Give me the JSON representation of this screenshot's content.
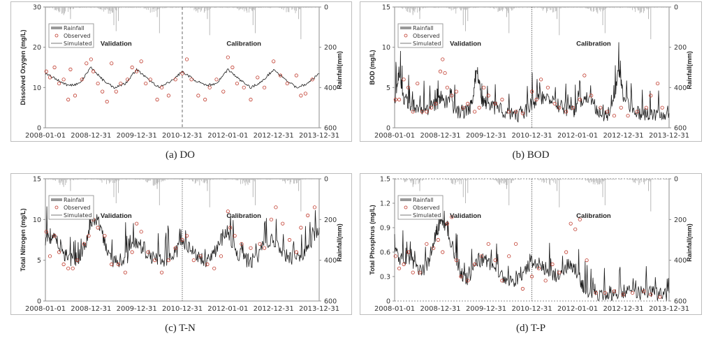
{
  "figure": {
    "captions": [
      "(a)  DO",
      "(b)  BOD",
      "(c)  T-N",
      "(d)  T-P"
    ]
  },
  "colors": {
    "simulated": "#1a1a1a",
    "observed": "#c0392b",
    "rainfall": "#b0b0b0",
    "axis": "#8c8c8c"
  },
  "chart_data": [
    {
      "type": "line",
      "id": "do",
      "caption": "(a)  DO",
      "ylabel": "Dissolved Oxygen (mg/L)",
      "y2label": "Rainfall(mm)",
      "ylim": [
        0,
        30
      ],
      "yticks": [
        "0",
        "10",
        "20",
        "30"
      ],
      "y2lim": [
        600,
        0
      ],
      "y2ticks": [
        "0",
        "200",
        "400",
        "600"
      ],
      "xticks": [
        "2008-01-01",
        "2008-12-31",
        "2009-12-31",
        "2010-12-31",
        "2012-01-01",
        "2012-12-31",
        "2013-12-31"
      ],
      "xrange_years": [
        2008.0,
        2014.0
      ],
      "divider_year": 2011.0,
      "divider_style": "dashed",
      "period_labels": [
        "Validation",
        "Calibration"
      ],
      "legend": [
        "Rainfall",
        "Observed",
        "Simulated"
      ],
      "legend_position": "top-left",
      "simulated": {
        "x": [
          2008.0,
          2008.25,
          2008.5,
          2008.75,
          2009.0,
          2009.25,
          2009.5,
          2009.75,
          2010.0,
          2010.25,
          2010.5,
          2010.75,
          2011.0,
          2011.25,
          2011.5,
          2011.75,
          2012.0,
          2012.25,
          2012.5,
          2012.75,
          2013.0,
          2013.25,
          2013.5,
          2013.75,
          2014.0
        ],
        "y": [
          13.5,
          12,
          10.5,
          11,
          15,
          12,
          10,
          11,
          14.5,
          12,
          10,
          11.5,
          14,
          12,
          10.5,
          11,
          14.5,
          12,
          10,
          11.5,
          14.5,
          12,
          10,
          11,
          13.5
        ]
      },
      "observed": {
        "x": [
          2008.02,
          2008.1,
          2008.2,
          2008.3,
          2008.4,
          2008.5,
          2008.55,
          2008.65,
          2008.8,
          2008.9,
          2009.0,
          2009.05,
          2009.15,
          2009.25,
          2009.35,
          2009.45,
          2009.55,
          2009.65,
          2009.8,
          2009.9,
          2010.0,
          2010.1,
          2010.2,
          2010.3,
          2010.45,
          2010.55,
          2010.7,
          2010.85,
          2011.0,
          2011.1,
          2011.2,
          2011.35,
          2011.5,
          2011.6,
          2011.75,
          2011.9,
          2012.0,
          2012.1,
          2012.2,
          2012.35,
          2012.5,
          2012.65,
          2012.8,
          2013.0,
          2013.15,
          2013.3,
          2013.5,
          2013.6,
          2013.7,
          2013.85
        ],
        "y": [
          14,
          12.5,
          15,
          11,
          12,
          7,
          14.5,
          8,
          12,
          16,
          17,
          14,
          11,
          9,
          6.5,
          16,
          9,
          11,
          12,
          15,
          14,
          16.5,
          11,
          12,
          7,
          10,
          8,
          12,
          13.5,
          17,
          12,
          8,
          7,
          10,
          12,
          9,
          17.5,
          15,
          11,
          10,
          7,
          12.5,
          10,
          16.5,
          13,
          11,
          13,
          8,
          8.5,
          12
        ]
      },
      "rainfall": {
        "x": [
          2008.4,
          2008.55,
          2009.5,
          2009.55,
          2009.6,
          2010.45,
          2010.5,
          2011.55,
          2011.6,
          2012.55,
          2012.6,
          2013.55,
          2013.6
        ],
        "y": [
          40,
          60,
          90,
          120,
          70,
          50,
          130,
          60,
          140,
          90,
          130,
          60,
          160
        ]
      }
    },
    {
      "type": "line",
      "id": "bod",
      "caption": "(b)  BOD",
      "ylabel": "BOD (mg/L)",
      "y2label": "Rainfall(mm)",
      "ylim": [
        0,
        15
      ],
      "yticks": [
        "0",
        "5",
        "10",
        "15"
      ],
      "y2lim": [
        600,
        0
      ],
      "y2ticks": [
        "0",
        "200",
        "400",
        "600"
      ],
      "xticks": [
        "2008-01-01",
        "2008-12-31",
        "2009-12-31",
        "2010-12-31",
        "2012-01-01",
        "2012-12-31",
        "2013-12-31"
      ],
      "xrange_years": [
        2008.0,
        2014.0
      ],
      "divider_year": 2011.0,
      "divider_style": "dotted",
      "period_labels": [
        "Validation",
        "Calibration"
      ],
      "legend": [
        "Rainfall",
        "Observed",
        "Simulated"
      ],
      "legend_position": "top-left",
      "simulated": {
        "x": [
          2008.0,
          2008.1,
          2008.2,
          2008.35,
          2008.5,
          2008.7,
          2008.9,
          2009.0,
          2009.2,
          2009.4,
          2009.6,
          2009.7,
          2009.8,
          2009.9,
          2010.0,
          2010.2,
          2010.4,
          2010.6,
          2010.8,
          2011.0,
          2011.1,
          2011.3,
          2011.5,
          2011.7,
          2011.9,
          2012.0,
          2012.2,
          2012.4,
          2012.6,
          2012.75,
          2012.9,
          2013.0,
          2013.2,
          2013.4,
          2013.6,
          2013.8,
          2014.0
        ],
        "y": [
          3,
          7,
          3.5,
          3,
          2.5,
          2,
          3,
          3.5,
          3,
          2,
          2,
          3,
          7.5,
          3.5,
          3,
          2.5,
          2,
          1.5,
          1.7,
          3,
          3.5,
          4,
          3,
          2.5,
          2,
          3,
          4,
          2.5,
          1.5,
          2,
          7,
          4,
          2,
          1.8,
          1.6,
          1.5,
          1.8
        ]
      },
      "observed": {
        "x": [
          2008.02,
          2008.1,
          2008.2,
          2008.3,
          2008.4,
          2008.5,
          2008.6,
          2008.7,
          2008.8,
          2008.9,
          2009.0,
          2009.05,
          2009.1,
          2009.15,
          2009.25,
          2009.35,
          2009.5,
          2009.6,
          2009.75,
          2009.85,
          2009.95,
          2010.05,
          2010.2,
          2010.35,
          2010.5,
          2010.65,
          2010.8,
          2011.0,
          2011.1,
          2011.2,
          2011.35,
          2011.5,
          2011.6,
          2011.75,
          2011.9,
          2012.05,
          2012.15,
          2012.3,
          2012.5,
          2012.65,
          2012.8,
          2012.95,
          2013.1,
          2013.3,
          2013.5,
          2013.6,
          2013.75,
          2013.85
        ],
        "y": [
          3.5,
          3.5,
          6,
          5,
          2,
          5.5,
          2,
          2,
          2.5,
          3,
          7,
          8.5,
          6.8,
          5,
          4,
          4.5,
          2.5,
          3,
          2,
          2.5,
          5,
          4,
          3,
          3.5,
          2,
          2,
          1.8,
          4.5,
          3.5,
          6,
          5,
          3,
          2.5,
          2,
          2.5,
          3.5,
          6.5,
          4,
          2.5,
          2,
          1.5,
          2.5,
          1.5,
          2,
          2.5,
          4,
          5.5,
          2.5
        ]
      },
      "rainfall": {
        "x": [
          2008.4,
          2008.55,
          2009.5,
          2009.55,
          2009.6,
          2010.45,
          2010.5,
          2011.55,
          2011.6,
          2012.55,
          2012.6,
          2013.55,
          2013.6
        ],
        "y": [
          40,
          60,
          90,
          120,
          70,
          50,
          130,
          60,
          140,
          90,
          130,
          60,
          160
        ]
      }
    },
    {
      "type": "line",
      "id": "tn",
      "caption": "(c)  T-N",
      "ylabel": "Total Nitrogen (mg/L)",
      "y2label": "Rainfall(mm)",
      "ylim": [
        0,
        15
      ],
      "yticks": [
        "0",
        "5",
        "10",
        "15"
      ],
      "y2lim": [
        600,
        0
      ],
      "y2ticks": [
        "0",
        "200",
        "400",
        "600"
      ],
      "xticks": [
        "2008-01-01",
        "2008-12-31",
        "2009-12-31",
        "2010-12-31",
        "2012-01-01",
        "2012-12-31",
        "2013-12-31"
      ],
      "xrange_years": [
        2008.0,
        2014.0
      ],
      "divider_year": 2011.0,
      "divider_style": "dotted",
      "period_labels": [
        "Validation",
        "Calibration"
      ],
      "legend": [
        "Rainfall",
        "Observed",
        "Simulated"
      ],
      "legend_position": "top-left",
      "simulated": {
        "x": [
          2008.0,
          2008.15,
          2008.3,
          2008.45,
          2008.6,
          2008.75,
          2008.9,
          2009.0,
          2009.15,
          2009.3,
          2009.45,
          2009.6,
          2009.8,
          2010.0,
          2010.2,
          2010.4,
          2010.6,
          2010.8,
          2011.0,
          2011.2,
          2011.4,
          2011.6,
          2011.8,
          2012.0,
          2012.2,
          2012.4,
          2012.6,
          2012.8,
          2013.0,
          2013.2,
          2013.4,
          2013.6,
          2013.8,
          2014.0
        ],
        "y": [
          7.5,
          8,
          7,
          5.5,
          5,
          5.5,
          7.5,
          10,
          10,
          7,
          5,
          5,
          5.5,
          7.5,
          6,
          5,
          5,
          5.5,
          7,
          6.5,
          5,
          5,
          7,
          8.5,
          6,
          5,
          5,
          7,
          7.5,
          6,
          5,
          5.5,
          7,
          9
        ]
      },
      "observed": {
        "x": [
          2008.02,
          2008.1,
          2008.2,
          2008.3,
          2008.4,
          2008.5,
          2008.6,
          2008.7,
          2008.85,
          2008.95,
          2009.05,
          2009.15,
          2009.3,
          2009.45,
          2009.6,
          2009.75,
          2009.9,
          2010.0,
          2010.1,
          2010.25,
          2010.4,
          2010.55,
          2010.7,
          2010.85,
          2011.0,
          2011.1,
          2011.25,
          2011.4,
          2011.55,
          2011.7,
          2011.85,
          2012.0,
          2012.05,
          2012.15,
          2012.3,
          2012.5,
          2012.7,
          2012.8,
          2012.95,
          2013.05,
          2013.2,
          2013.35,
          2013.5,
          2013.6,
          2013.75,
          2013.9
        ],
        "y": [
          8.5,
          5.5,
          8,
          6,
          4.5,
          4,
          4,
          5,
          7,
          8,
          10,
          9,
          8,
          4.5,
          4.5,
          3.5,
          6,
          9.5,
          8.5,
          6,
          5,
          3.5,
          5,
          6.5,
          7.5,
          8,
          5,
          5.5,
          4.5,
          4,
          5.5,
          11,
          9,
          8,
          7,
          6.5,
          7,
          6.5,
          10,
          11.5,
          9.5,
          7.5,
          6,
          9,
          10.5,
          11.5
        ]
      },
      "rainfall": {
        "x": [
          2008.4,
          2008.55,
          2009.5,
          2009.55,
          2009.6,
          2010.45,
          2010.5,
          2011.55,
          2011.6,
          2012.55,
          2012.6,
          2013.55,
          2013.6
        ],
        "y": [
          40,
          60,
          90,
          120,
          70,
          50,
          130,
          60,
          140,
          90,
          130,
          60,
          160
        ]
      }
    },
    {
      "type": "line",
      "id": "tp",
      "caption": "(d)  T-P",
      "ylabel": "Total Phosphrus (mg/L)",
      "y2label": "Rainfall(mm)",
      "ylim": [
        0,
        1.5
      ],
      "yticks": [
        "0",
        "0.3",
        "0.6",
        "0.9",
        "1.2",
        "1.5"
      ],
      "y2lim": [
        600,
        0
      ],
      "y2ticks": [
        "0",
        "200",
        "400",
        "600"
      ],
      "xticks": [
        "2008-01-01",
        "2008-12-31",
        "2009-12-31",
        "2010-12-31",
        "2012-01-01",
        "2012-12-31",
        "2013-12-31"
      ],
      "xrange_years": [
        2008.0,
        2014.0
      ],
      "divider_year": 2011.0,
      "divider_style": "dotted",
      "period_labels": [
        "Validation",
        "Calibration"
      ],
      "legend": [
        "Rainfall",
        "Observed",
        "Simulated"
      ],
      "legend_position": "top-left",
      "simulated": {
        "x": [
          2008.0,
          2008.15,
          2008.3,
          2008.45,
          2008.6,
          2008.75,
          2008.9,
          2009.0,
          2009.15,
          2009.3,
          2009.45,
          2009.6,
          2009.8,
          2010.0,
          2010.2,
          2010.4,
          2010.6,
          2010.8,
          2011.0,
          2011.2,
          2011.4,
          2011.6,
          2011.8,
          2011.95,
          2012.1,
          2012.25,
          2012.4,
          2012.6,
          2012.8,
          2013.0,
          2013.2,
          2013.4,
          2013.6,
          2013.8,
          2014.0
        ],
        "y": [
          0.6,
          0.5,
          0.55,
          0.45,
          0.35,
          0.5,
          0.8,
          1.0,
          0.9,
          0.6,
          0.35,
          0.25,
          0.5,
          0.5,
          0.4,
          0.3,
          0.2,
          0.3,
          0.5,
          0.45,
          0.35,
          0.3,
          0.45,
          0.4,
          0.2,
          0.12,
          0.1,
          0.08,
          0.1,
          0.12,
          0.1,
          0.1,
          0.1,
          0.08,
          0.1
        ]
      },
      "observed": {
        "x": [
          2008.02,
          2008.1,
          2008.2,
          2008.3,
          2008.4,
          2008.55,
          2008.7,
          2008.85,
          2008.95,
          2009.05,
          2009.15,
          2009.25,
          2009.35,
          2009.45,
          2009.6,
          2009.75,
          2009.9,
          2010.05,
          2010.2,
          2010.35,
          2010.5,
          2010.65,
          2010.8,
          2011.0,
          2011.15,
          2011.3,
          2011.45,
          2011.6,
          2011.75,
          2011.85,
          2011.95,
          2012.05,
          2012.2,
          2012.4,
          2012.6,
          2012.8,
          2013.0,
          2013.2,
          2013.45,
          2013.6,
          2013.8
        ],
        "y": [
          0.55,
          0.4,
          0.45,
          0.6,
          0.35,
          0.35,
          0.7,
          0.65,
          0.75,
          0.6,
          0.95,
          1.03,
          0.5,
          0.3,
          0.25,
          0.45,
          0.55,
          0.7,
          0.5,
          0.25,
          0.55,
          0.7,
          0.15,
          0.3,
          0.4,
          0.25,
          0.45,
          0.35,
          0.6,
          0.95,
          0.88,
          1.0,
          0.5,
          0.1,
          0.1,
          0.12,
          0.08,
          0.1,
          0.12,
          0.08,
          0.05
        ]
      },
      "rainfall": {
        "x": [
          2008.4,
          2008.55,
          2009.5,
          2009.55,
          2009.6,
          2010.45,
          2010.5,
          2011.55,
          2011.6,
          2012.55,
          2012.6,
          2013.55,
          2013.6
        ],
        "y": [
          40,
          60,
          90,
          120,
          70,
          50,
          130,
          60,
          140,
          90,
          130,
          60,
          160
        ]
      }
    }
  ]
}
